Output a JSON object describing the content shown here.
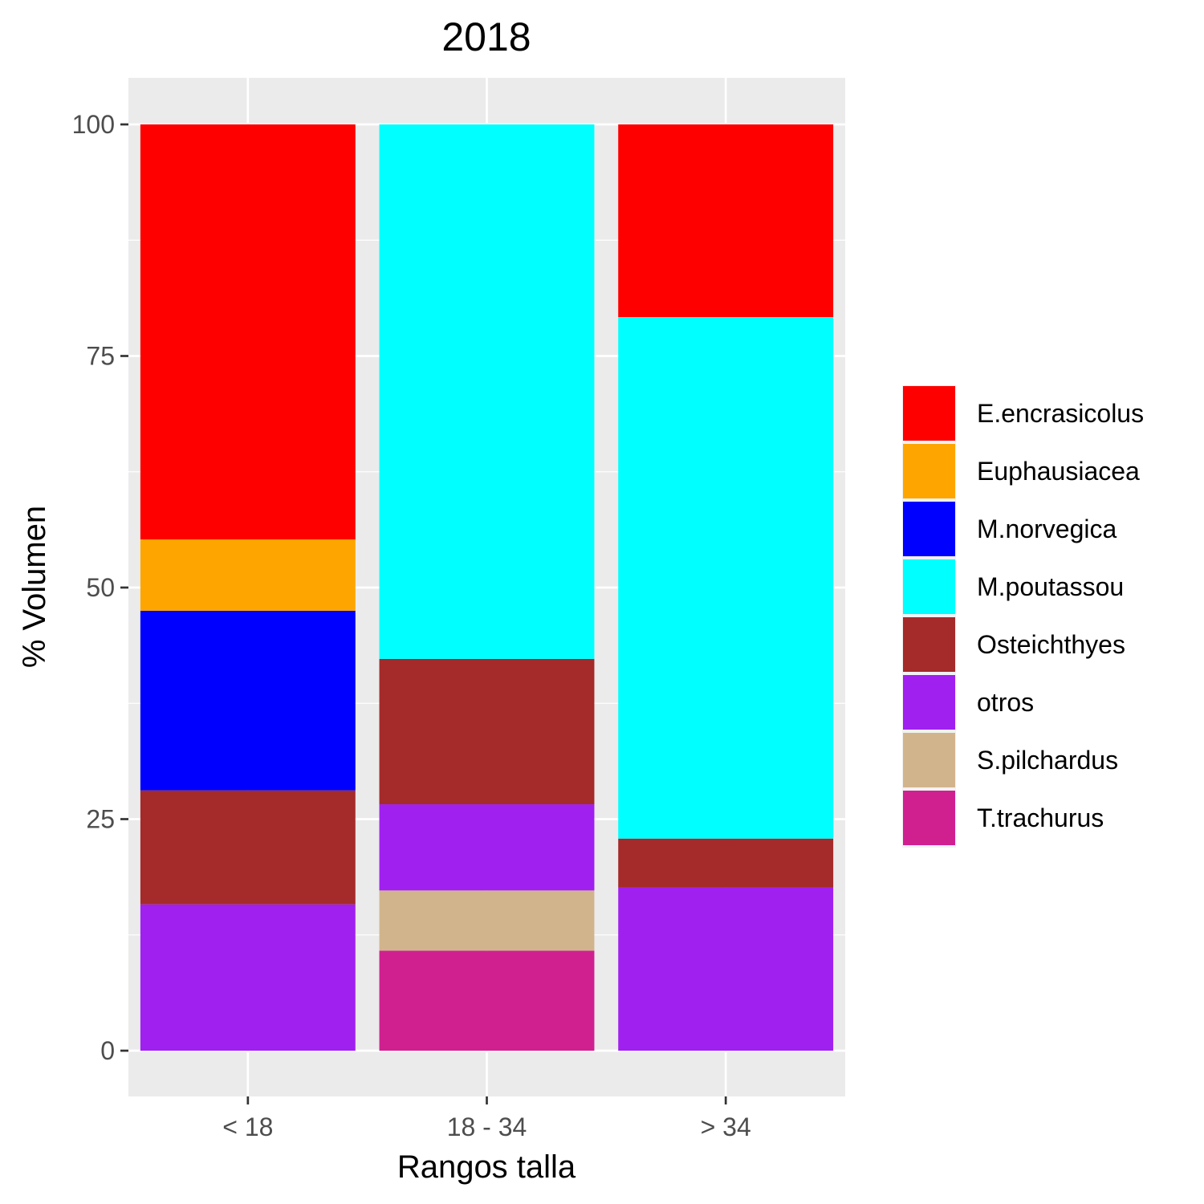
{
  "chart_data": {
    "type": "bar",
    "stacked": true,
    "title": "2018",
    "xlabel": "Rangos talla",
    "ylabel": "% Volumen",
    "categories": [
      "< 18",
      "18 - 34",
      "> 34"
    ],
    "ylim": [
      -5,
      105
    ],
    "yticks": [
      0,
      25,
      50,
      75,
      100
    ],
    "grid": true,
    "legend_position": "right",
    "series": [
      {
        "name": "T.trachurus",
        "color": "#D02090",
        "values": [
          0,
          10.8,
          0
        ]
      },
      {
        "name": "S.pilchardus",
        "color": "#D2B48C",
        "values": [
          0,
          6.5,
          0
        ]
      },
      {
        "name": "otros",
        "color": "#A020F0",
        "values": [
          15.8,
          9.3,
          17.6
        ]
      },
      {
        "name": "Osteichthyes",
        "color": "#A52A2A",
        "values": [
          12.3,
          15.7,
          5.3
        ]
      },
      {
        "name": "M.poutassou",
        "color": "#00FFFF",
        "values": [
          0,
          57.7,
          56.3
        ]
      },
      {
        "name": "M.norvegica",
        "color": "#0000FF",
        "values": [
          19.4,
          0,
          0
        ]
      },
      {
        "name": "Euphausiacea",
        "color": "#FFA500",
        "values": [
          7.7,
          0,
          0
        ]
      },
      {
        "name": "E.encrasicolus",
        "color": "#FF0000",
        "values": [
          44.8,
          0,
          20.8
        ]
      }
    ],
    "legend_order": [
      "E.encrasicolus",
      "Euphausiacea",
      "M.norvegica",
      "M.poutassou",
      "Osteichthyes",
      "otros",
      "S.pilchardus",
      "T.trachurus"
    ]
  }
}
